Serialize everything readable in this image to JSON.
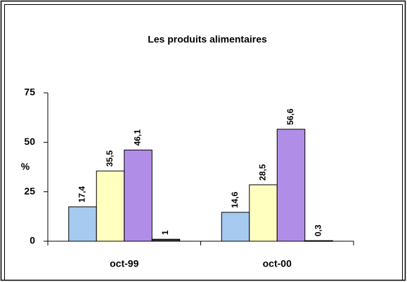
{
  "chart_data": {
    "type": "bar",
    "title": "Les produits alimentaires",
    "y_label": "%",
    "categories": [
      "oct-99",
      "oct-00"
    ],
    "series": [
      {
        "color": "#a6caf0",
        "values": [
          17.4,
          14.6
        ],
        "value_labels": [
          "17,4",
          "14,6"
        ]
      },
      {
        "color": "#ffffc0",
        "values": [
          35.5,
          28.5
        ],
        "value_labels": [
          "35,5",
          "28,5"
        ]
      },
      {
        "color": "#b08ee8",
        "values": [
          46.1,
          56.6
        ],
        "value_labels": [
          "46,1",
          "56,6"
        ]
      },
      {
        "color": "#333333",
        "values": [
          1,
          0.3
        ],
        "value_labels": [
          "1",
          "0,3"
        ]
      }
    ],
    "ylim": [
      0,
      75
    ],
    "yticks": [
      0,
      25,
      50,
      75
    ]
  }
}
